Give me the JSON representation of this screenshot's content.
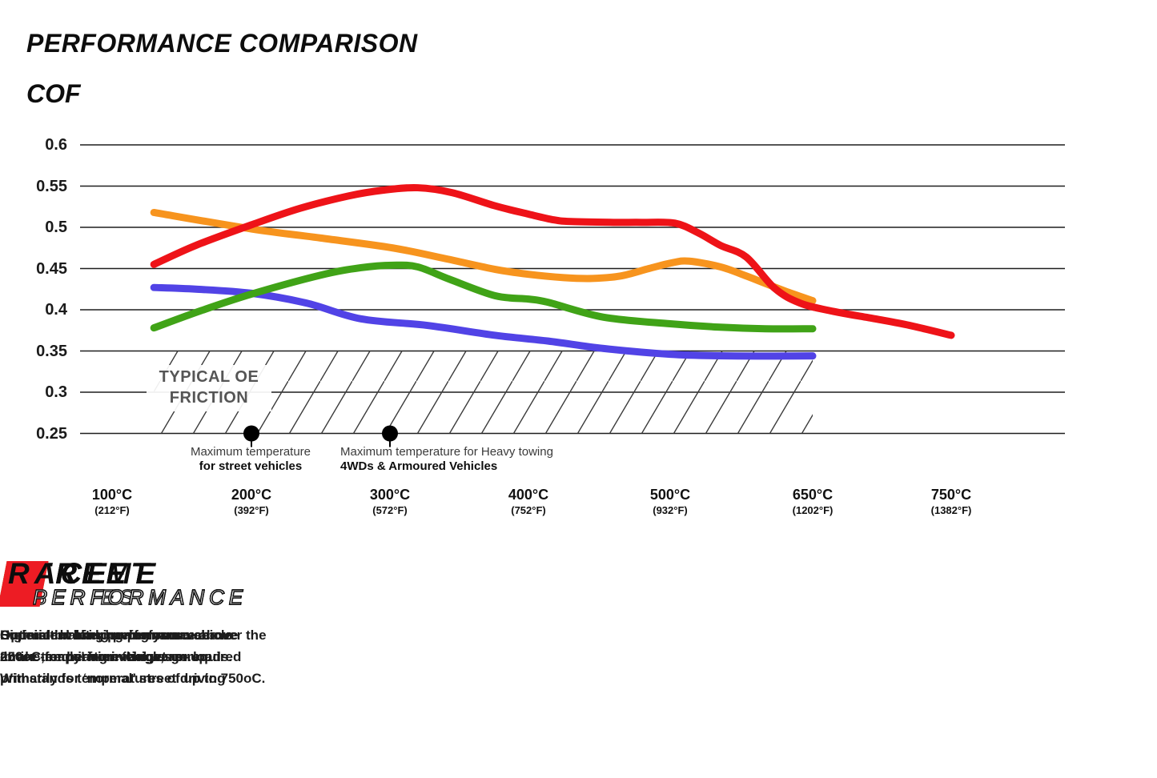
{
  "title": "PERFORMANCE COMPARISON",
  "ylabel": "COF",
  "chart_data": {
    "type": "line",
    "title": "PERFORMANCE COMPARISON",
    "ylabel": "COF",
    "xlabel": "",
    "grid": true,
    "y_axis": {
      "min": 0.25,
      "max": 0.6,
      "ticks": [
        "0.6",
        "0.55",
        "0.5",
        "0.45",
        "0.4",
        "0.35",
        "0.3",
        "0.25"
      ]
    },
    "x_axis": {
      "tick_temps": [
        100,
        200,
        300,
        400,
        500,
        650,
        750
      ],
      "ticks": [
        {
          "c": "100°C",
          "f": "(212°F)"
        },
        {
          "c": "200°C",
          "f": "(392°F)"
        },
        {
          "c": "300°C",
          "f": "(572°F)"
        },
        {
          "c": "400°C",
          "f": "(752°F)"
        },
        {
          "c": "500°C",
          "f": "(932°F)"
        },
        {
          "c": "650°C",
          "f": "(1202°F)"
        },
        {
          "c": "750°C",
          "f": "(1382°F)"
        }
      ]
    },
    "series": [
      {
        "name": "Street Series",
        "color": "#5143e6",
        "points": [
          [
            130,
            0.427
          ],
          [
            160,
            0.425
          ],
          [
            200,
            0.42
          ],
          [
            240,
            0.408
          ],
          [
            279,
            0.389
          ],
          [
            327,
            0.381
          ],
          [
            376,
            0.369
          ],
          [
            414,
            0.362
          ],
          [
            453,
            0.353
          ],
          [
            500,
            0.346
          ],
          [
            560,
            0.344
          ],
          [
            650,
            0.344
          ]
        ]
      },
      {
        "name": "Street Performance",
        "color": "#40a317",
        "points": [
          [
            130,
            0.378
          ],
          [
            164,
            0.399
          ],
          [
            200,
            0.419
          ],
          [
            250,
            0.442
          ],
          [
            279,
            0.451
          ],
          [
            302,
            0.454
          ],
          [
            320,
            0.452
          ],
          [
            343,
            0.437
          ],
          [
            376,
            0.417
          ],
          [
            400,
            0.413
          ],
          [
            414,
            0.409
          ],
          [
            453,
            0.391
          ],
          [
            500,
            0.383
          ],
          [
            550,
            0.379
          ],
          [
            600,
            0.377
          ],
          [
            650,
            0.377
          ]
        ]
      },
      {
        "name": "Xtreme Performance",
        "color": "#f7941e",
        "points": [
          [
            130,
            0.518
          ],
          [
            200,
            0.498
          ],
          [
            250,
            0.487
          ],
          [
            302,
            0.475
          ],
          [
            340,
            0.462
          ],
          [
            376,
            0.449
          ],
          [
            400,
            0.443
          ],
          [
            425,
            0.439
          ],
          [
            445,
            0.438
          ],
          [
            465,
            0.441
          ],
          [
            485,
            0.45
          ],
          [
            502,
            0.457
          ],
          [
            520,
            0.459
          ],
          [
            553,
            0.452
          ],
          [
            580,
            0.441
          ],
          [
            600,
            0.432
          ],
          [
            625,
            0.421
          ],
          [
            650,
            0.411
          ]
        ]
      },
      {
        "name": "Race Performance",
        "color": "#ee1318",
        "points": [
          [
            130,
            0.455
          ],
          [
            160,
            0.478
          ],
          [
            200,
            0.503
          ],
          [
            235,
            0.523
          ],
          [
            270,
            0.538
          ],
          [
            295,
            0.545
          ],
          [
            320,
            0.548
          ],
          [
            345,
            0.542
          ],
          [
            376,
            0.526
          ],
          [
            400,
            0.516
          ],
          [
            418,
            0.509
          ],
          [
            430,
            0.507
          ],
          [
            460,
            0.506
          ],
          [
            480,
            0.506
          ],
          [
            505,
            0.505
          ],
          [
            530,
            0.493
          ],
          [
            553,
            0.478
          ],
          [
            580,
            0.464
          ],
          [
            610,
            0.426
          ],
          [
            637,
            0.408
          ],
          [
            665,
            0.398
          ],
          [
            695,
            0.389
          ],
          [
            720,
            0.381
          ],
          [
            750,
            0.369
          ]
        ]
      }
    ],
    "band": {
      "label_line1": "TYPICAL OE",
      "label_line2": "FRICTION",
      "from": 0.25,
      "to": 0.35,
      "temp_from": 130,
      "temp_to": 650
    },
    "annotations": [
      {
        "line1": "Maximum temperature",
        "line2": "for street vehicles",
        "at_temp": 200,
        "at_value": 0.25
      },
      {
        "line1": "Maximum temperature for Heavy towing",
        "line2": "4WDs & Armoured Vehicles",
        "at_temp": 300,
        "at_value": 0.25
      }
    ]
  },
  "legend": [
    {
      "word1": "STREET",
      "word2": "SERIES",
      "color": "#6a5cea",
      "description": "Consistent braking performance over the entire temperature range, as required primarily for ‘normal’ street driving"
    },
    {
      "word1": "STREET",
      "word2": "PERFORMANCE",
      "color": "#43a41c",
      "description": "Superior braking performance above 200oC for heavier vehicles or loads."
    },
    {
      "word1": "XTREME",
      "word2": "PERFORMANCE",
      "color": "#f7941e",
      "description": "High initial bite, having your vehicle ‘brake-ready’ from the get-go."
    },
    {
      "word1": "RACE",
      "word2": "PERFORMANCE",
      "color": "#ed1c24",
      "description": "Optimal braking performance above 250oC, requiring initial warm-up. Withstands temperatures of up to 750oC."
    }
  ]
}
